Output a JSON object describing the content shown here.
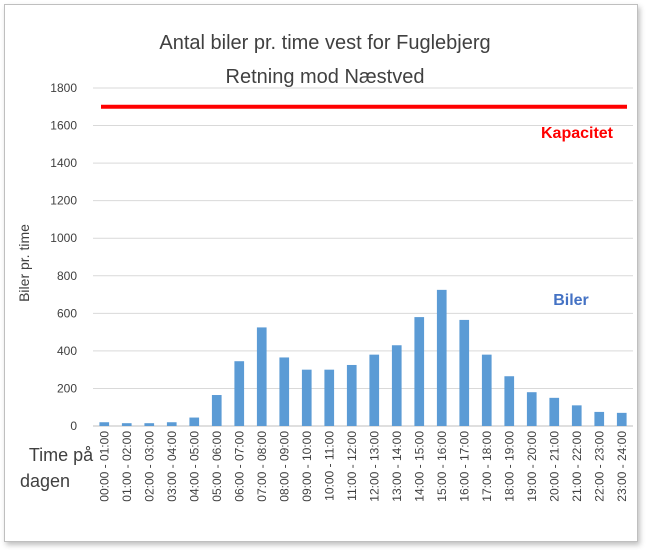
{
  "chart_data": {
    "type": "bar",
    "title": "Antal biler pr. time vest for Fuglebjerg",
    "subtitle": "Retning mod Næstved",
    "ylabel": "Biler pr. time",
    "xlabel_lines": [
      "Time på",
      "dagen"
    ],
    "ylim": [
      0,
      1800
    ],
    "yticks": [
      0,
      200,
      400,
      600,
      800,
      1000,
      1200,
      1400,
      1600,
      1800
    ],
    "grid": true,
    "categories": [
      "00:00 - 01:00",
      "01:00 - 02:00",
      "02:00 - 03:00",
      "03:00 - 04:00",
      "04:00 - 05:00",
      "05:00 - 06:00",
      "06:00 - 07:00",
      "07:00 - 08:00",
      "08:00 - 09:00",
      "09:00 - 10:00",
      "10:00 - 11:00",
      "11:00 - 12:00",
      "12:00 - 13:00",
      "13:00 - 14:00",
      "14:00 - 15:00",
      "15:00 - 16:00",
      "16:00 - 17:00",
      "17:00 - 18:00",
      "18:00 - 19:00",
      "19:00 - 20:00",
      "20:00 - 21:00",
      "21:00 - 22:00",
      "22:00 - 23:00",
      "23:00 - 24:00"
    ],
    "series": [
      {
        "name": "Biler",
        "color": "#5b9bd5",
        "values": [
          20,
          15,
          15,
          20,
          45,
          165,
          345,
          525,
          365,
          300,
          300,
          325,
          380,
          430,
          580,
          725,
          565,
          380,
          265,
          180,
          150,
          110,
          75,
          70
        ]
      }
    ],
    "reference_line": {
      "name": "Kapacitet",
      "value": 1700,
      "color": "#ff0000"
    }
  }
}
